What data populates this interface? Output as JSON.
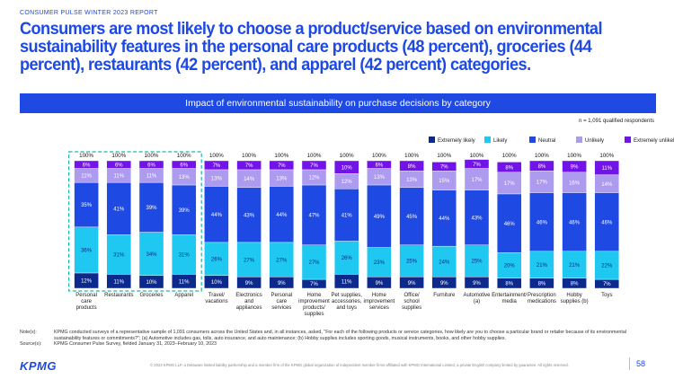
{
  "report_label": "CONSUMER PULSE WINTER 2023 REPORT",
  "headline": "Consumers are most likely to choose a product/service based on environmental sustainability features in the personal care products (48 percent), groceries (44 percent), restaurants (42 percent), and apparel (42 percent) categories.",
  "chart_data": {
    "type": "bar",
    "stacked": "100%",
    "title": "Impact of environmental sustainability on purchase decisions by category",
    "note": "n = 1,091 qualified respondents",
    "legend_position": "top-right",
    "categories": [
      [
        "Personal",
        "care",
        "products"
      ],
      [
        "Restaurants"
      ],
      [
        "Groceries"
      ],
      [
        "Apparel"
      ],
      [
        "Travel/",
        "vacations"
      ],
      [
        "Electronics",
        "and",
        "appliances"
      ],
      [
        "Personal",
        "care",
        "services"
      ],
      [
        "Home",
        "improvement",
        "products/",
        "supplies"
      ],
      [
        "Pet supplies,",
        "accessories,",
        "and toys"
      ],
      [
        "Home",
        "improvement",
        "services"
      ],
      [
        "Office/",
        "school",
        "supplies"
      ],
      [
        "Furniture"
      ],
      [
        "Automotive",
        "(a)"
      ],
      [
        "Entertainment/",
        "media"
      ],
      [
        "Prescription",
        "medications"
      ],
      [
        "Hobby",
        "supplies (b)"
      ],
      [
        "Toys"
      ]
    ],
    "totals": [
      "100%",
      "100%",
      "100%",
      "100%",
      "100%",
      "100%",
      "100%",
      "100%",
      "100%",
      "100%",
      "100%",
      "100%",
      "100%",
      "100%",
      "100%",
      "100%",
      "100%"
    ],
    "series": [
      {
        "name": "Extremely likely",
        "color": "#0c2a8e",
        "values": [
          12,
          11,
          10,
          11,
          10,
          9,
          9,
          7,
          11,
          9,
          9,
          9,
          9,
          8,
          8,
          8,
          7
        ]
      },
      {
        "name": "Likely",
        "color": "#1ec8f0",
        "values": [
          36,
          31,
          34,
          31,
          26,
          27,
          27,
          27,
          26,
          23,
          25,
          24,
          25,
          20,
          21,
          21,
          22
        ]
      },
      {
        "name": "Neutral",
        "color": "#1e49e2",
        "values": [
          35,
          41,
          39,
          39,
          44,
          43,
          44,
          47,
          41,
          49,
          45,
          44,
          43,
          46,
          46,
          46,
          46
        ]
      },
      {
        "name": "Unlikely",
        "color": "#ad9bf0",
        "values": [
          11,
          11,
          11,
          13,
          13,
          14,
          13,
          12,
          12,
          13,
          13,
          15,
          17,
          17,
          17,
          16,
          14
        ]
      },
      {
        "name": "Extremely unlikely",
        "color": "#7213ea",
        "values": [
          6,
          6,
          6,
          6,
          7,
          7,
          7,
          7,
          10,
          6,
          8,
          7,
          7,
          8,
          8,
          9,
          11
        ]
      }
    ],
    "highlight_categories": [
      0,
      1,
      2,
      3
    ],
    "ylim": [
      0,
      100
    ]
  },
  "notes": {
    "note_label": "Note(s):",
    "note_text": "KPMG conducted surveys of a representative sample of 1,091 consumers across the United States and, in all instances, asked, \"For each of the following products or service categories, how likely are you to choose a particular brand or retailer because of its environmental sustainability features or commitments?\"; (a) Automotive includes gas, tolls, auto insurance, and auto maintenance; (b) Hobby supplies includes sporting goods, musical instruments, books, and other hobby supplies.",
    "source_label": "Source(s):",
    "source_text": "KPMG Consumer Pulse Survey, fielded January 31, 2023–February 10, 2023"
  },
  "footer": {
    "logo": "KPMG",
    "legal": "© 2023 KPMG LLP, a Delaware limited liability partnership and a member firm of the KPMG global organization of independent member firms affiliated with KPMG International Limited, a private English company limited by guarantee. All rights reserved.",
    "page_number": "58"
  }
}
